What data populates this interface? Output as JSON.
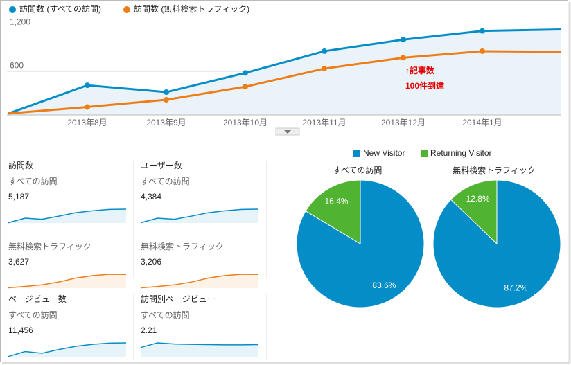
{
  "line_chart": {
    "type": "line",
    "categories": [
      null,
      "2013年8月",
      "2013年9月",
      "2013年10月",
      "2013年11月",
      "2013年12月",
      "2014年1月",
      null
    ],
    "series": [
      {
        "name": "訪問数 (すべての訪問)",
        "color": "#058dc7",
        "values": [
          20,
          410,
          315,
          580,
          880,
          1040,
          1160,
          1180
        ]
      },
      {
        "name": "訪問数 (無料検索トラフィック)",
        "color": "#ed7e17",
        "values": [
          20,
          110,
          210,
          390,
          640,
          790,
          880,
          870
        ]
      }
    ],
    "ylim": [
      0,
      1300
    ],
    "yticks": [
      {
        "value": 1200,
        "label": "1,200"
      },
      600
    ],
    "grid": true,
    "annotation": [
      "↑記事数",
      "100件到達"
    ]
  },
  "metrics": [
    {
      "title": "訪問数",
      "rows": [
        {
          "label": "すべての訪問",
          "value": "5,187",
          "color": "#058dc7",
          "trend": [
            20,
            410,
            315,
            580,
            880,
            1040,
            1160,
            1180
          ]
        },
        {
          "label": "無料検索トラフィック",
          "value": "3,627",
          "color": "#ed7e17",
          "trend": [
            20,
            110,
            210,
            390,
            640,
            790,
            880,
            870
          ]
        }
      ]
    },
    {
      "title": "ユーザー数",
      "rows": [
        {
          "label": "すべての訪問",
          "value": "4,384",
          "color": "#058dc7",
          "trend": [
            20,
            350,
            270,
            490,
            740,
            880,
            980,
            1000
          ]
        },
        {
          "label": "無料検索トラフィック",
          "value": "3,206",
          "color": "#ed7e17",
          "trend": [
            15,
            90,
            180,
            330,
            550,
            690,
            760,
            750
          ]
        }
      ]
    },
    {
      "title": "ページビュー数",
      "rows": [
        {
          "label": "すべての訪問",
          "value": "11,456",
          "color": "#058dc7",
          "trend": [
            40,
            900,
            600,
            1250,
            1800,
            2150,
            2350,
            2400
          ]
        }
      ]
    },
    {
      "title": "訪問別ページビュー",
      "rows": [
        {
          "label": "すべての訪問",
          "value": "2.21",
          "color": "#058dc7",
          "trend": [
            1.6,
            2.4,
            2.2,
            2.15,
            2.1,
            2.05,
            2.05,
            2.1
          ]
        }
      ]
    }
  ],
  "pies": {
    "type": "pie",
    "legend": [
      {
        "name": "New Visitor",
        "color": "#058dc7"
      },
      {
        "name": "Returning Visitor",
        "color": "#50b432"
      }
    ],
    "charts": [
      {
        "title": "すべての訪問",
        "values": [
          83.6,
          16.4
        ],
        "value_labels": [
          "83.6%",
          "16.4%"
        ]
      },
      {
        "title": "無料検索トラフィック",
        "values": [
          87.2,
          12.8
        ],
        "value_labels": [
          "87.2%",
          "12.8%"
        ]
      }
    ]
  }
}
